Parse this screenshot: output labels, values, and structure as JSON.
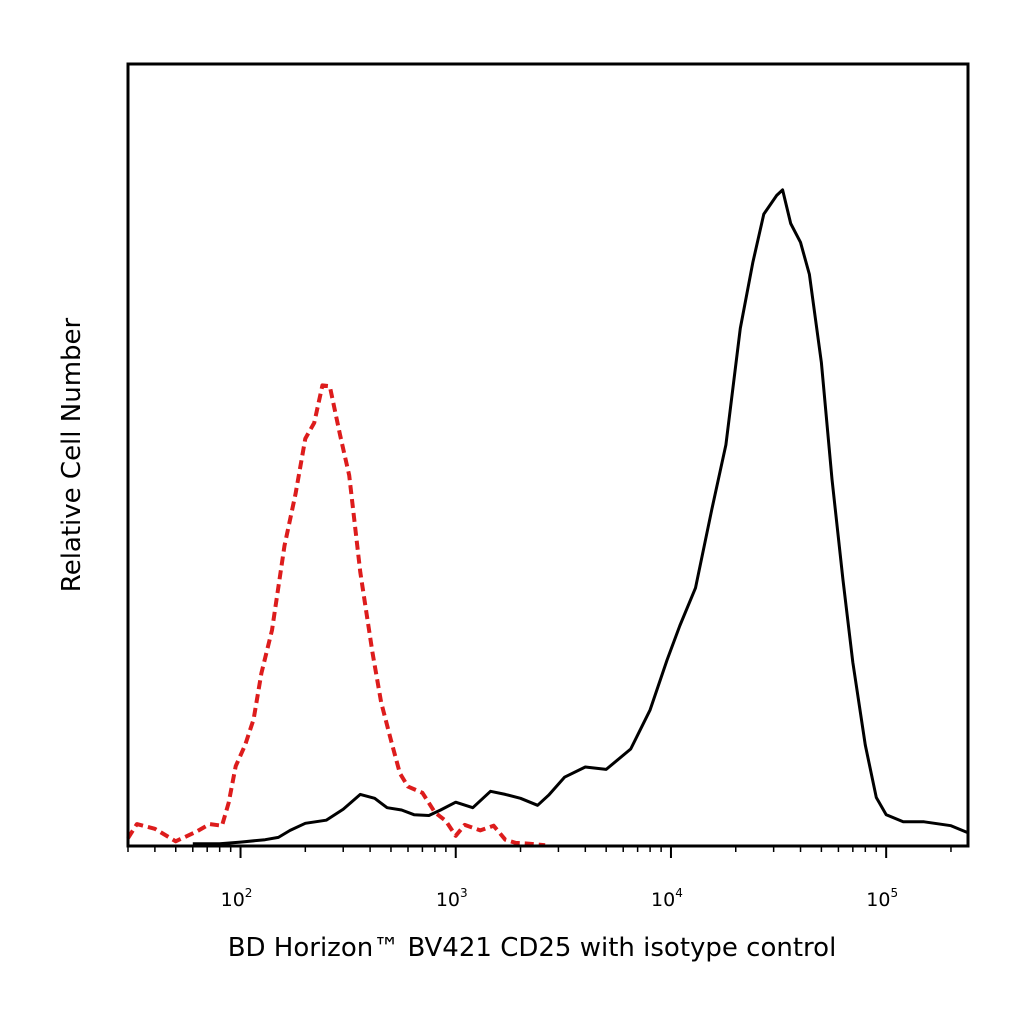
{
  "chart_data": {
    "type": "line",
    "xlabel": "BD Horizon™ BV421 CD25 with isotype control",
    "ylabel": "Relative Cell Number",
    "x_scale": "log",
    "xlim": [
      30,
      240000
    ],
    "ylim": [
      0,
      100
    ],
    "x_ticks": [
      {
        "value": 100,
        "base": "10",
        "exp": "2"
      },
      {
        "value": 1000,
        "base": "10",
        "exp": "3"
      },
      {
        "value": 10000,
        "base": "10",
        "exp": "4"
      },
      {
        "value": 100000,
        "base": "10",
        "exp": "5"
      }
    ],
    "series": [
      {
        "color": "#000000",
        "style": "solid",
        "points": [
          [
            60,
            0.3
          ],
          [
            80,
            0.3
          ],
          [
            100,
            0.5
          ],
          [
            130,
            0.8
          ],
          [
            150,
            1.1
          ],
          [
            170,
            2.0
          ],
          [
            200,
            2.9
          ],
          [
            250,
            3.3
          ],
          [
            300,
            4.7
          ],
          [
            360,
            6.6
          ],
          [
            420,
            6.1
          ],
          [
            480,
            4.9
          ],
          [
            560,
            4.6
          ],
          [
            640,
            4.0
          ],
          [
            750,
            3.9
          ],
          [
            850,
            4.6
          ],
          [
            1000,
            5.6
          ],
          [
            1200,
            4.9
          ],
          [
            1450,
            7.0
          ],
          [
            1700,
            6.6
          ],
          [
            2000,
            6.1
          ],
          [
            2400,
            5.2
          ],
          [
            2700,
            6.5
          ],
          [
            3200,
            8.8
          ],
          [
            4000,
            10.1
          ],
          [
            5000,
            9.8
          ],
          [
            6500,
            12.4
          ],
          [
            8000,
            17.4
          ],
          [
            9600,
            23.8
          ],
          [
            11000,
            28.2
          ],
          [
            13000,
            33.0
          ],
          [
            15500,
            43.1
          ],
          [
            18000,
            51.3
          ],
          [
            21000,
            66.2
          ],
          [
            24000,
            74.6
          ],
          [
            27000,
            80.8
          ],
          [
            31000,
            83.2
          ],
          [
            33000,
            83.9
          ],
          [
            36000,
            79.6
          ],
          [
            40000,
            77.2
          ],
          [
            44000,
            73.1
          ],
          [
            50000,
            61.8
          ],
          [
            56000,
            46.9
          ],
          [
            63000,
            34.0
          ],
          [
            70000,
            23.5
          ],
          [
            80000,
            12.9
          ],
          [
            90000,
            6.2
          ],
          [
            100000,
            4.0
          ],
          [
            120000,
            3.1
          ],
          [
            150000,
            3.1
          ],
          [
            200000,
            2.6
          ],
          [
            240000,
            1.7
          ]
        ]
      },
      {
        "color": "#dd1c1c",
        "style": "dashed",
        "points": [
          [
            30,
            1.0
          ],
          [
            33,
            2.8
          ],
          [
            40,
            2.2
          ],
          [
            50,
            0.6
          ],
          [
            62,
            1.8
          ],
          [
            72,
            2.8
          ],
          [
            82,
            2.6
          ],
          [
            88,
            5.5
          ],
          [
            95,
            10.2
          ],
          [
            105,
            12.9
          ],
          [
            115,
            16.2
          ],
          [
            125,
            22.1
          ],
          [
            140,
            27.6
          ],
          [
            160,
            38.4
          ],
          [
            180,
            45.0
          ],
          [
            200,
            52.1
          ],
          [
            220,
            54.1
          ],
          [
            240,
            58.9
          ],
          [
            260,
            58.8
          ],
          [
            290,
            52.6
          ],
          [
            320,
            47.4
          ],
          [
            360,
            35.0
          ],
          [
            410,
            24.8
          ],
          [
            450,
            18.4
          ],
          [
            500,
            13.5
          ],
          [
            550,
            9.3
          ],
          [
            600,
            7.6
          ],
          [
            700,
            6.8
          ],
          [
            800,
            4.3
          ],
          [
            900,
            3.2
          ],
          [
            1000,
            1.3
          ],
          [
            1100,
            2.7
          ],
          [
            1300,
            2.0
          ],
          [
            1500,
            2.6
          ],
          [
            1700,
            0.8
          ],
          [
            1900,
            0.4
          ],
          [
            2200,
            0.3
          ],
          [
            2600,
            0.1
          ]
        ]
      }
    ]
  }
}
